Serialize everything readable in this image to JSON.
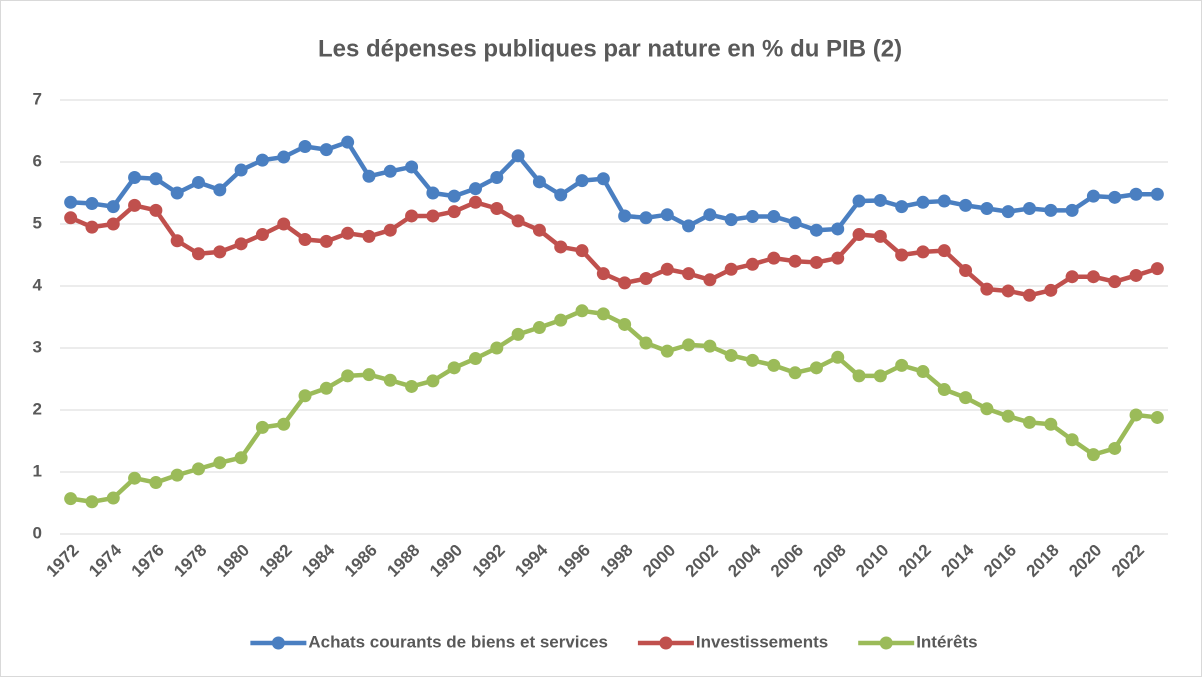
{
  "chart_data": {
    "type": "line",
    "title": "Les dépenses publiques par nature en % du PIB (2)",
    "categories": [
      "1972",
      null,
      "1974",
      null,
      "1976",
      null,
      "1978",
      null,
      "1980",
      null,
      "1982",
      null,
      "1984",
      null,
      "1986",
      null,
      "1988",
      null,
      "1990",
      null,
      "1992",
      null,
      "1994",
      null,
      "1996",
      null,
      "1998",
      null,
      "2000",
      null,
      "2002",
      null,
      "2004",
      null,
      "2006",
      null,
      "2008",
      null,
      "2010",
      null,
      "2012",
      null,
      "2014",
      null,
      "2016",
      null,
      "2018",
      null,
      "2020",
      null,
      "2022",
      null
    ],
    "series": [
      {
        "name": "Achats courants de biens et services",
        "color": "#4a7fc1",
        "values": [
          5.35,
          5.33,
          5.28,
          5.75,
          5.73,
          5.5,
          5.67,
          5.55,
          5.87,
          6.03,
          6.08,
          6.25,
          6.2,
          6.32,
          5.77,
          5.85,
          5.92,
          5.5,
          5.45,
          5.57,
          5.75,
          6.1,
          5.68,
          5.47,
          5.7,
          5.73,
          5.13,
          5.1,
          5.15,
          4.97,
          5.15,
          5.07,
          5.12,
          5.12,
          5.02,
          4.9,
          4.92,
          5.37,
          5.38,
          5.28,
          5.35,
          5.37,
          5.3,
          5.25,
          5.2,
          5.25,
          5.22,
          5.22,
          5.45,
          5.43,
          5.48,
          5.48
        ]
      },
      {
        "name": "Investissements",
        "color": "#c0504d",
        "values": [
          5.1,
          4.95,
          5.0,
          5.3,
          5.22,
          4.73,
          4.52,
          4.55,
          4.68,
          4.83,
          5.0,
          4.75,
          4.72,
          4.85,
          4.8,
          4.9,
          5.13,
          5.13,
          5.2,
          5.35,
          5.25,
          5.05,
          4.9,
          4.63,
          4.57,
          4.2,
          4.05,
          4.12,
          4.27,
          4.2,
          4.1,
          4.27,
          4.35,
          4.45,
          4.4,
          4.38,
          4.45,
          4.83,
          4.8,
          4.5,
          4.55,
          4.57,
          4.25,
          3.95,
          3.92,
          3.85,
          3.93,
          4.15,
          4.15,
          4.07,
          4.17,
          4.28
        ]
      },
      {
        "name": "Intérêts",
        "color": "#9bbb59",
        "values": [
          0.57,
          0.52,
          0.58,
          0.9,
          0.83,
          0.95,
          1.05,
          1.15,
          1.23,
          1.72,
          1.77,
          2.23,
          2.35,
          2.55,
          2.57,
          2.48,
          2.38,
          2.47,
          2.68,
          2.83,
          3.0,
          3.22,
          3.33,
          3.45,
          3.6,
          3.55,
          3.38,
          3.08,
          2.95,
          3.05,
          3.03,
          2.88,
          2.8,
          2.72,
          2.6,
          2.68,
          2.85,
          2.55,
          2.55,
          2.72,
          2.62,
          2.33,
          2.2,
          2.02,
          1.9,
          1.8,
          1.77,
          1.52,
          1.28,
          1.38,
          1.92,
          1.88
        ]
      }
    ],
    "ylim": [
      0,
      7
    ],
    "yticks": [
      0,
      1,
      2,
      3,
      4,
      5,
      6,
      7
    ],
    "grid": true,
    "legend": "bottom"
  }
}
